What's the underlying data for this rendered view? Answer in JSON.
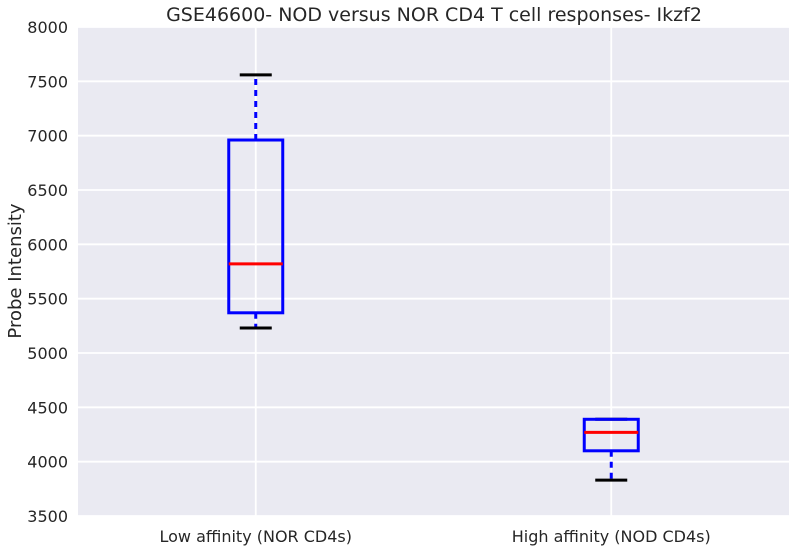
{
  "chart_data": {
    "type": "box",
    "title": "GSE46600- NOD versus NOR CD4 T cell responses- Ikzf2",
    "xlabel": "",
    "ylabel": "Probe Intensity",
    "ylim": [
      3500,
      8000
    ],
    "yticks": [
      3500,
      4000,
      4500,
      5000,
      5500,
      6000,
      6500,
      7000,
      7500,
      8000
    ],
    "grid": true,
    "categories": [
      "Low affinity (NOR CD4s)",
      "High affinity (NOD CD4s)"
    ],
    "boxes": [
      {
        "category": "Low affinity (NOR CD4s)",
        "whisker_low": 5230,
        "q1": 5370,
        "median": 5820,
        "q3": 6960,
        "whisker_high": 7560
      },
      {
        "category": "High affinity (NOD CD4s)",
        "whisker_low": 3830,
        "q1": 4100,
        "median": 4270,
        "q3": 4390,
        "whisker_high": 4390
      }
    ],
    "colors": {
      "background": "#EAEAF2",
      "grid": "#FFFFFF",
      "box": "#0000FF",
      "median": "#FF0000",
      "cap": "#000000"
    }
  }
}
